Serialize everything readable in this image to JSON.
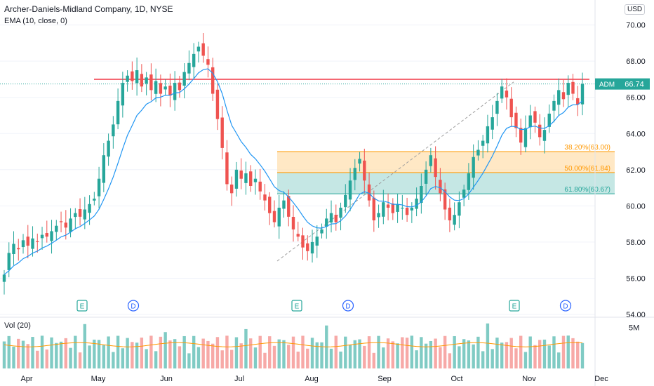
{
  "header": {
    "title": "Archer-Daniels-Midland Company, 1D, NYSE",
    "indicator": "EMA (10, close, 0)",
    "currency": "USD"
  },
  "price_tag": {
    "symbol": "ADM",
    "value": "66.74"
  },
  "fib_labels": [
    "38.20%(63.00)",
    "50.00%(61.84)",
    "61.80%(60.67)"
  ],
  "volume_label": "Vol (20)",
  "volume_axis_label": "5M",
  "event_markers": [
    "E",
    "D",
    "E",
    "D",
    "E",
    "D"
  ],
  "colors": {
    "up": "#26a69a",
    "down": "#ef5350",
    "ema": "#2196f3",
    "resistance": "#f23645",
    "fib1": "#ff9800",
    "fib2": "#26a69a"
  },
  "chart_data": {
    "type": "candlestick",
    "title": "Archer-Daniels-Midland Company, 1D, NYSE",
    "y_axis_ticks": [
      "70.00",
      "68.00",
      "66.00",
      "64.00",
      "62.00",
      "60.00",
      "58.00",
      "56.00",
      "54.00"
    ],
    "x_axis_ticks": [
      "Apr",
      "May",
      "Jun",
      "Jul",
      "Aug",
      "Sep",
      "Oct",
      "Nov",
      "Dec"
    ],
    "ylim": [
      54,
      70.8
    ],
    "last_price": 66.74,
    "resistance_level": 67.0,
    "fibonacci": [
      {
        "level": "38.20%",
        "price": 63.0
      },
      {
        "level": "50.00%",
        "price": 61.84
      },
      {
        "level": "61.80%",
        "price": 60.67
      }
    ],
    "closes": [
      56.2,
      57.4,
      57.9,
      57.6,
      58.1,
      57.8,
      58.2,
      58.0,
      58.4,
      58.3,
      58.6,
      58.9,
      59.1,
      58.8,
      59.3,
      59.6,
      59.4,
      59.8,
      60.1,
      60.4,
      61.5,
      62.8,
      63.6,
      64.5,
      65.8,
      66.8,
      67.2,
      66.9,
      67.5,
      66.6,
      67.1,
      66.4,
      66.9,
      66.2,
      66.6,
      66.1,
      66.8,
      66.4,
      67.4,
      67.9,
      68.4,
      68.8,
      68.3,
      67.8,
      66.2,
      64.8,
      63.2,
      61.2,
      60.7,
      62.0,
      61.5,
      61.8,
      61.1,
      61.5,
      60.8,
      60.3,
      59.6,
      59.1,
      59.9,
      60.3,
      59.4,
      58.7,
      58.3,
      57.7,
      57.5,
      58.0,
      58.3,
      58.7,
      59.3,
      59.6,
      59.1,
      59.9,
      60.6,
      61.4,
      62.1,
      62.6,
      61.4,
      60.3,
      59.2,
      59.6,
      60.2,
      59.9,
      59.6,
      60.1,
      59.9,
      59.5,
      59.9,
      60.4,
      61.1,
      62.0,
      62.8,
      61.6,
      60.7,
      59.8,
      59.2,
      59.5,
      60.2,
      60.9,
      61.8,
      62.7,
      63.1,
      63.6,
      64.4,
      64.9,
      65.8,
      66.6,
      66.0,
      64.9,
      64.3,
      63.5,
      64.3,
      65.0,
      64.6,
      63.8,
      64.2,
      65.1,
      65.8,
      66.4,
      65.9,
      66.8,
      66.2,
      65.6,
      66.74
    ],
    "volume_ylim": [
      0,
      6000000
    ],
    "volume_tick": "5M"
  }
}
